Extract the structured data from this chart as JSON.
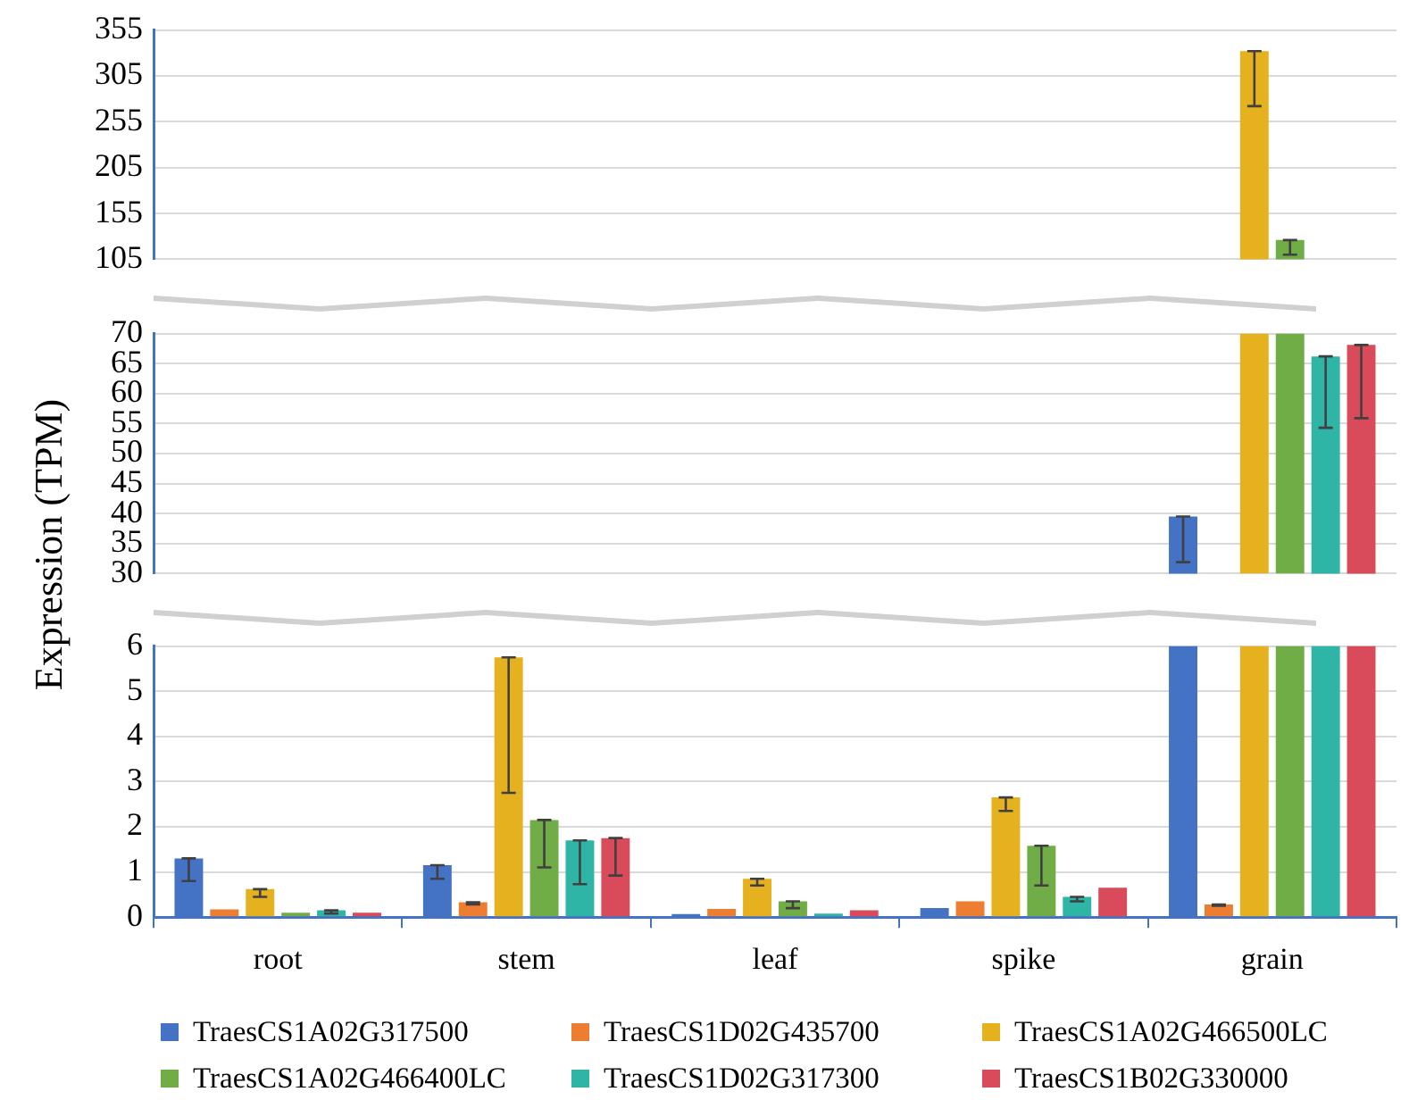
{
  "chart_data": [
    {
      "type": "bar",
      "ylim": [
        105,
        355
      ],
      "yticks": [
        105,
        155,
        205,
        255,
        305,
        355
      ],
      "grid": "y",
      "tick_labels": "y",
      "series": [
        {
          "color": "#4472c4",
          "values": [
            null,
            null,
            null,
            null,
            null
          ]
        },
        {
          "color": "#ed7d31",
          "values": [
            null,
            null,
            null,
            null,
            null
          ]
        },
        {
          "color": "#e6b11e",
          "values": [
            null,
            null,
            null,
            null,
            332
          ],
          "errors": [
            null,
            null,
            null,
            null,
            [
              272,
              332
            ]
          ]
        },
        {
          "color": "#70ad47",
          "values": [
            null,
            null,
            null,
            null,
            126
          ],
          "errors": [
            null,
            null,
            null,
            null,
            [
              110,
              126
            ]
          ]
        },
        {
          "color": "#2fb5a6",
          "values": [
            null,
            null,
            null,
            null,
            null
          ]
        },
        {
          "color": "#d94a5a",
          "values": [
            null,
            null,
            null,
            null,
            null
          ]
        }
      ]
    },
    {
      "type": "bar",
      "ylabel": "Expression (TPM)",
      "ylim": [
        30,
        70
      ],
      "yticks": [
        30,
        35,
        40,
        45,
        50,
        55,
        60,
        65,
        70
      ],
      "grid": "y",
      "tick_labels": "y",
      "series": [
        {
          "color": "#4472c4",
          "values": [
            null,
            null,
            null,
            null,
            39.5
          ],
          "errors": [
            null,
            null,
            null,
            null,
            [
              31.9,
              39.5
            ]
          ]
        },
        {
          "color": "#ed7d31",
          "values": [
            null,
            null,
            null,
            null,
            null
          ]
        },
        {
          "color": "#e6b11e",
          "values": [
            null,
            null,
            null,
            null,
            40
          ],
          "base": [
            null,
            null,
            null,
            null,
            30
          ]
        },
        {
          "color": "#70ad47",
          "values": [
            null,
            null,
            null,
            null,
            40
          ],
          "base": [
            null,
            null,
            null,
            null,
            30
          ]
        },
        {
          "color": "#2fb5a6",
          "values": [
            null,
            null,
            null,
            null,
            66.2
          ],
          "errors": [
            null,
            null,
            null,
            null,
            [
              54.3,
              66.2
            ]
          ]
        },
        {
          "color": "#d94a5a",
          "values": [
            null,
            null,
            null,
            null,
            68.1
          ],
          "errors": [
            null,
            null,
            null,
            null,
            [
              55.9,
              68.1
            ]
          ]
        }
      ]
    },
    {
      "type": "bar",
      "categories": [
        "root",
        "stem",
        "leaf",
        "spike",
        "grain"
      ],
      "ylim": [
        0,
        6
      ],
      "yticks": [
        0,
        1,
        2,
        3,
        4,
        5,
        6
      ],
      "grid": "y",
      "legend": "bottom",
      "series": [
        {
          "name": "TraesCS1A02G317500",
          "color": "#4472c4",
          "values": [
            1.3,
            1.15,
            0.07,
            0.2,
            6
          ],
          "base": [
            null,
            null,
            null,
            null,
            0
          ],
          "errors": [
            [
              0.8,
              1.3
            ],
            [
              0.85,
              1.15
            ],
            null,
            null,
            null
          ]
        },
        {
          "name": "TraesCS1D02G435700",
          "color": "#ed7d31",
          "values": [
            0.17,
            0.33,
            0.18,
            0.35,
            0.28
          ],
          "errors": [
            null,
            [
              0.28,
              0.33
            ],
            null,
            null,
            [
              0.25,
              0.28
            ]
          ]
        },
        {
          "name": "TraesCS1A02G466500LC",
          "color": "#e6b11e",
          "values": [
            0.62,
            5.75,
            0.85,
            2.65,
            6
          ],
          "base": [
            null,
            null,
            null,
            null,
            0
          ],
          "errors": [
            [
              0.45,
              0.62
            ],
            [
              2.75,
              5.75
            ],
            [
              0.7,
              0.85
            ],
            [
              2.35,
              2.65
            ],
            null
          ]
        },
        {
          "name": "TraesCS1A02G466400LC",
          "color": "#70ad47",
          "values": [
            0.1,
            2.15,
            0.35,
            1.58,
            6
          ],
          "base": [
            null,
            null,
            null,
            null,
            0
          ],
          "errors": [
            null,
            [
              1.1,
              2.15
            ],
            [
              0.2,
              0.35
            ],
            [
              0.7,
              1.58
            ],
            null
          ]
        },
        {
          "name": "TraesCS1D02G317300",
          "color": "#2fb5a6",
          "values": [
            0.15,
            1.7,
            0.08,
            0.45,
            6
          ],
          "base": [
            null,
            null,
            null,
            null,
            0
          ],
          "errors": [
            [
              0.08,
              0.15
            ],
            [
              0.73,
              1.7
            ],
            null,
            [
              0.35,
              0.45
            ],
            null
          ]
        },
        {
          "name": "TraesCS1B02G330000",
          "color": "#d94a5a",
          "values": [
            0.1,
            1.75,
            0.15,
            0.65,
            6
          ],
          "base": [
            null,
            null,
            null,
            null,
            0
          ],
          "errors": [
            null,
            [
              0.92,
              1.75
            ],
            null,
            null,
            null
          ]
        }
      ]
    }
  ]
}
